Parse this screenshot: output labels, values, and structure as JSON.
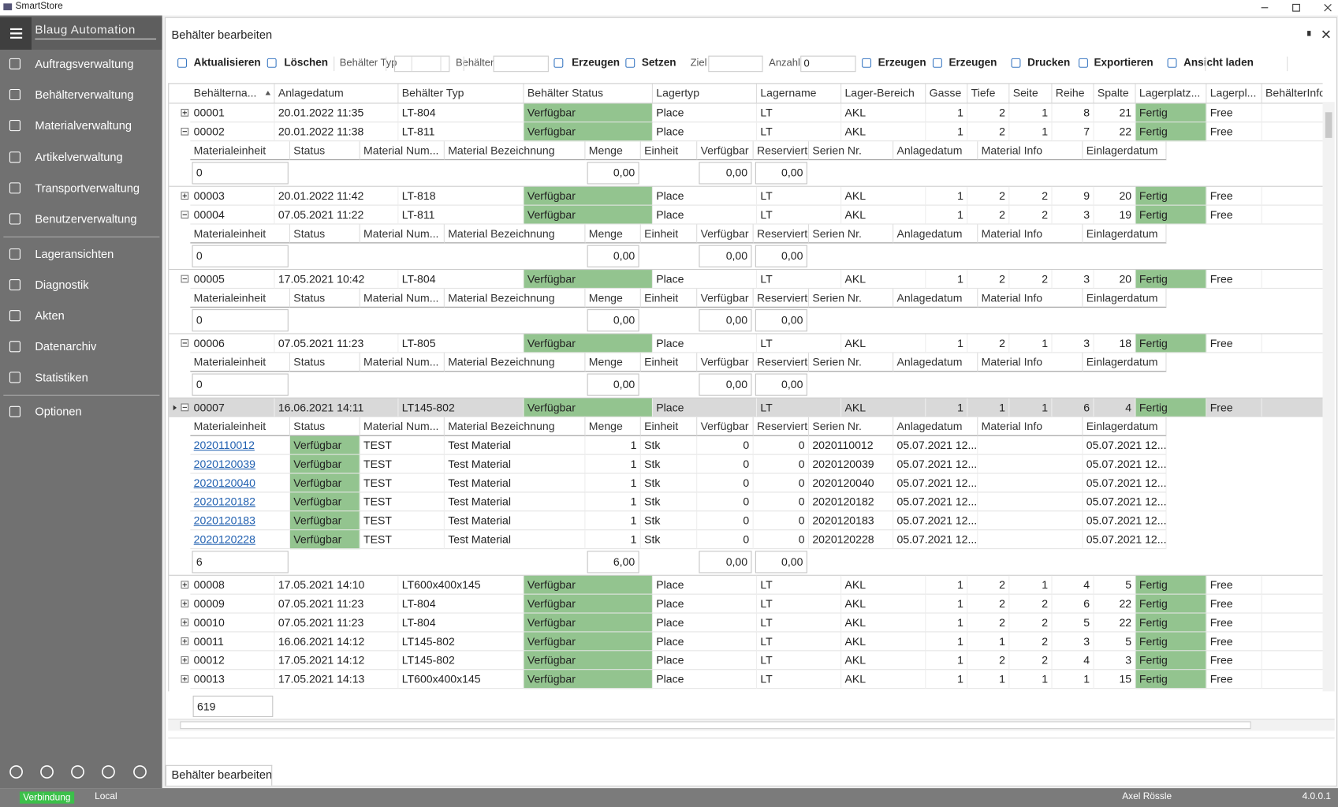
{
  "app_title": "SmartStore",
  "sidebar": {
    "brand": "Blaug Automation",
    "items": [
      "Auftragsverwaltung",
      "Behälterverwaltung",
      "Materialverwaltung",
      "Artikelverwaltung",
      "Transportverwaltung",
      "Benutzerverwaltung",
      "Lageransichten",
      "Diagnostik",
      "Akten",
      "Datenarchiv",
      "Statistiken",
      "Optionen"
    ]
  },
  "status": {
    "connection": "Verbindung",
    "mode": "Local",
    "user": "Axel Rössle",
    "version": "4.0.0.1"
  },
  "panel": {
    "title": "Behälter bearbeiten",
    "tab": "Behälter bearbeiten"
  },
  "toolbar": {
    "refresh": "Aktualisieren",
    "delete": "Löschen",
    "type_label": "Behälter Typ",
    "container_label": "Behälter",
    "create1": "Erzeugen",
    "set": "Setzen",
    "target_label": "Ziel",
    "count_label": "Anzahl",
    "count_value": "0",
    "create2": "Erzeugen",
    "create3": "Erzeugen",
    "print": "Drucken",
    "export": "Exportieren",
    "load_view": "Ansicht laden"
  },
  "grid": {
    "columns": [
      "Behälterna...",
      "Anlagedatum",
      "Behälter Typ",
      "Behälter Status",
      "Lagertyp",
      "Lagername",
      "Lager-Bereich",
      "Gasse",
      "Tiefe",
      "Seite",
      "Reihe",
      "Spalte",
      "Lagerplatz...",
      "Lagerpl...",
      "BehälterInfo"
    ],
    "sub_columns": [
      "Materialeinheit",
      "Status",
      "Material Num...",
      "Material Bezeichnung",
      "Menge",
      "Einheit",
      "Verfügbar",
      "Reserviert",
      "Serien Nr.",
      "Anlagedatum",
      "Material Info",
      "Einlagerdatum"
    ],
    "rows": [
      {
        "cells": [
          "00001",
          "20.01.2022 11:35",
          "LT-804",
          "Verfügbar",
          "Place",
          "LT",
          "AKL",
          1,
          2,
          1,
          8,
          21,
          "Fertig",
          "Free"
        ]
      },
      {
        "cells": [
          "00002",
          "20.01.2022 11:38",
          "LT-811",
          "Verfügbar",
          "Place",
          "LT",
          "AKL",
          1,
          2,
          1,
          7,
          22,
          "Fertig",
          "Free"
        ],
        "expanded": true,
        "details": [],
        "summary": [
          "0",
          "0,00",
          "0,00",
          "0,00"
        ]
      },
      {
        "cells": [
          "00003",
          "20.01.2022 11:42",
          "LT-818",
          "Verfügbar",
          "Place",
          "LT",
          "AKL",
          1,
          2,
          2,
          9,
          20,
          "Fertig",
          "Free"
        ]
      },
      {
        "cells": [
          "00004",
          "07.05.2021 11:22",
          "LT-811",
          "Verfügbar",
          "Place",
          "LT",
          "AKL",
          1,
          2,
          2,
          3,
          19,
          "Fertig",
          "Free"
        ],
        "expanded": true,
        "details": [],
        "summary": [
          "0",
          "0,00",
          "0,00",
          "0,00"
        ]
      },
      {
        "cells": [
          "00005",
          "17.05.2021 10:42",
          "LT-804",
          "Verfügbar",
          "Place",
          "LT",
          "AKL",
          1,
          2,
          2,
          3,
          20,
          "Fertig",
          "Free"
        ],
        "expanded": true,
        "details": [],
        "summary": [
          "0",
          "0,00",
          "0,00",
          "0,00"
        ]
      },
      {
        "cells": [
          "00006",
          "07.05.2021 11:23",
          "LT-805",
          "Verfügbar",
          "Place",
          "LT",
          "AKL",
          1,
          2,
          1,
          3,
          18,
          "Fertig",
          "Free"
        ],
        "expanded": true,
        "details": [],
        "summary": [
          "0",
          "0,00",
          "0,00",
          "0,00"
        ]
      },
      {
        "cells": [
          "00007",
          "16.06.2021 14:11",
          "LT145-802",
          "Verfügbar",
          "Place",
          "LT",
          "AKL",
          1,
          1,
          1,
          6,
          4,
          "Fertig",
          "Free"
        ],
        "expanded": true,
        "selected": true,
        "details": [
          [
            "2020110012",
            "Verfügbar",
            "TEST",
            "Test Material",
            1,
            "Stk",
            0,
            0,
            "2020110012",
            "05.07.2021 12...",
            null,
            "05.07.2021 12..."
          ],
          [
            "2020120039",
            "Verfügbar",
            "TEST",
            "Test Material",
            1,
            "Stk",
            0,
            0,
            "2020120039",
            "05.07.2021 12...",
            null,
            "05.07.2021 12..."
          ],
          [
            "2020120040",
            "Verfügbar",
            "TEST",
            "Test Material",
            1,
            "Stk",
            0,
            0,
            "2020120040",
            "05.07.2021 12...",
            null,
            "05.07.2021 12..."
          ],
          [
            "2020120182",
            "Verfügbar",
            "TEST",
            "Test Material",
            1,
            "Stk",
            0,
            0,
            "2020120182",
            "05.07.2021 12...",
            null,
            "05.07.2021 12..."
          ],
          [
            "2020120183",
            "Verfügbar",
            "TEST",
            "Test Material",
            1,
            "Stk",
            0,
            0,
            "2020120183",
            "05.07.2021 12...",
            null,
            "05.07.2021 12..."
          ],
          [
            "2020120228",
            "Verfügbar",
            "TEST",
            "Test Material",
            1,
            "Stk",
            0,
            0,
            "2020120228",
            "05.07.2021 12...",
            null,
            "05.07.2021 12..."
          ]
        ],
        "summary": [
          "6",
          "6,00",
          "0,00",
          "0,00"
        ]
      },
      {
        "cells": [
          "00008",
          "17.05.2021 14:10",
          "LT600x400x145",
          "Verfügbar",
          "Place",
          "LT",
          "AKL",
          1,
          2,
          1,
          4,
          5,
          "Fertig",
          "Free"
        ]
      },
      {
        "cells": [
          "00009",
          "07.05.2021 11:23",
          "LT-804",
          "Verfügbar",
          "Place",
          "LT",
          "AKL",
          1,
          2,
          2,
          6,
          22,
          "Fertig",
          "Free"
        ]
      },
      {
        "cells": [
          "00010",
          "07.05.2021 11:23",
          "LT-804",
          "Verfügbar",
          "Place",
          "LT",
          "AKL",
          1,
          2,
          2,
          5,
          22,
          "Fertig",
          "Free"
        ]
      },
      {
        "cells": [
          "00011",
          "16.06.2021 14:12",
          "LT145-802",
          "Verfügbar",
          "Place",
          "LT",
          "AKL",
          1,
          1,
          2,
          3,
          5,
          "Fertig",
          "Free"
        ]
      },
      {
        "cells": [
          "00012",
          "17.05.2021 14:12",
          "LT145-802",
          "Verfügbar",
          "Place",
          "LT",
          "AKL",
          1,
          2,
          2,
          4,
          3,
          "Fertig",
          "Free"
        ]
      },
      {
        "cells": [
          "00013",
          "17.05.2021 14:13",
          "LT600x400x145",
          "Verfügbar",
          "Place",
          "LT",
          "AKL",
          1,
          1,
          1,
          1,
          15,
          "Fertig",
          "Free"
        ]
      }
    ],
    "total": "619"
  }
}
